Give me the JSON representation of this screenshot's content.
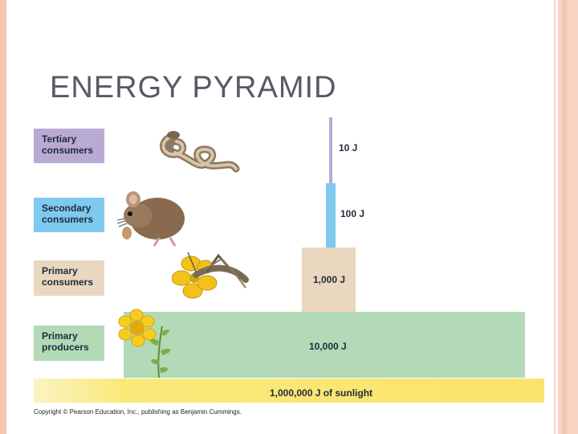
{
  "title": "ENERGY PYRAMID",
  "levels": {
    "tertiary": {
      "label": "Tertiary consumers",
      "energy": "10 J"
    },
    "secondary": {
      "label": "Secondary consumers",
      "energy": "100 J"
    },
    "primary": {
      "label": "Primary consumers",
      "energy": "1,000 J"
    },
    "producers": {
      "label": "Primary producers",
      "energy": "10,000 J"
    }
  },
  "sunlight": "1,000,000 J of sunlight",
  "copyright": "Copyright © Pearson Education, Inc., publishing as Benjamin Cummings.",
  "illustrations": {
    "tertiary": "snake-icon",
    "secondary": "mouse-icon",
    "primary": "grasshopper-icon",
    "producers": "flower-plant-icon"
  },
  "colors": {
    "tertiary": "#b9aad4",
    "secondary": "#7ec9ef",
    "primary": "#ead7bf",
    "producers": "#b2dab6",
    "sunlight": "#fbe36b"
  }
}
